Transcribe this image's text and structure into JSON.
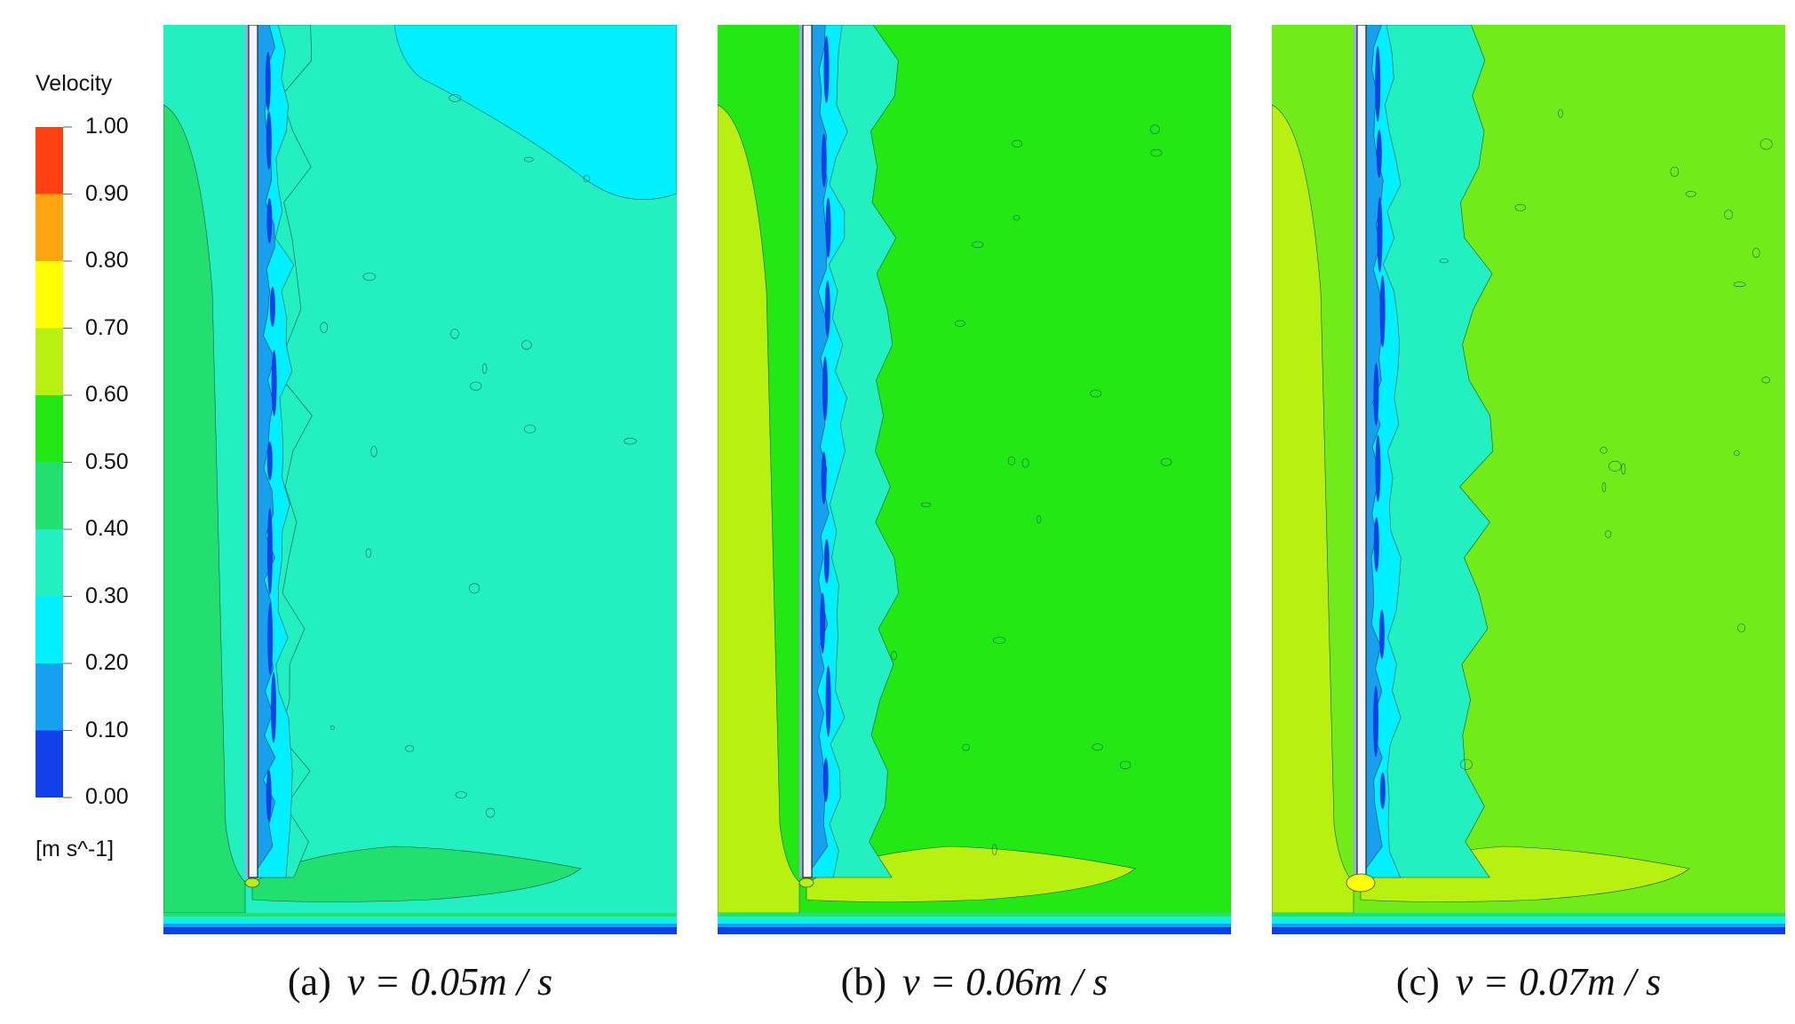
{
  "chart_data": {
    "type": "heatmap",
    "legend": {
      "title": "Velocity",
      "unit": "[m s^-1]",
      "range": [
        0.0,
        1.0
      ],
      "ticks": [
        "1.00",
        "0.90",
        "0.80",
        "0.70",
        "0.60",
        "0.50",
        "0.40",
        "0.30",
        "0.20",
        "0.10",
        "0.00"
      ],
      "bands": [
        {
          "min": 0.0,
          "max": 0.1,
          "color": "#1040e8"
        },
        {
          "min": 0.1,
          "max": 0.2,
          "color": "#18a0f0"
        },
        {
          "min": 0.2,
          "max": 0.3,
          "color": "#00f0ff"
        },
        {
          "min": 0.3,
          "max": 0.4,
          "color": "#22f0c0"
        },
        {
          "min": 0.4,
          "max": 0.5,
          "color": "#22e070"
        },
        {
          "min": 0.5,
          "max": 0.6,
          "color": "#22e814"
        },
        {
          "min": 0.6,
          "max": 0.7,
          "color": "#b8f010"
        },
        {
          "min": 0.7,
          "max": 0.8,
          "color": "#ffff00"
        },
        {
          "min": 0.8,
          "max": 0.9,
          "color": "#ffa510"
        },
        {
          "min": 0.9,
          "max": 1.0,
          "color": "#ff4010"
        }
      ]
    },
    "panels": [
      {
        "label": "(a)",
        "equation": "v = 0.05m / s",
        "bulk_color": "#22f0c0",
        "left_color": "#22e070",
        "upper_right_color": "#00f0ff",
        "wake_color": "#22e070",
        "tip_color": "#b8f010"
      },
      {
        "label": "(b)",
        "equation": "v = 0.06m / s",
        "bulk_color": "#22e814",
        "left_color": "#b8f010",
        "upper_right_color": "#22e814",
        "wake_color": "#b8f010",
        "tip_color": "#b8f010"
      },
      {
        "label": "(c)",
        "equation": "v = 0.07m / s",
        "bulk_color": "#72ec18",
        "left_color": "#b8f010",
        "upper_right_color": "#72ec18",
        "wake_color": "#b8f010",
        "tip_color": "#ffff00"
      }
    ]
  }
}
